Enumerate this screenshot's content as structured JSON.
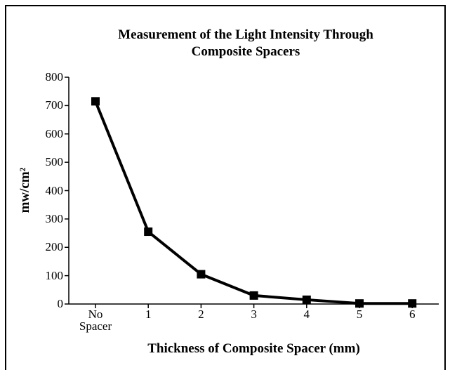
{
  "chart_data": {
    "type": "line",
    "title": "Measurement of the Light Intensity Through Composite Spacers",
    "x_label": "Thickness of Composite Spacer (mm)",
    "y_label": "mw/cm²",
    "categories": [
      "No Spacer",
      "1",
      "2",
      "3",
      "4",
      "5",
      "6"
    ],
    "values": [
      715,
      255,
      105,
      30,
      15,
      2,
      2
    ],
    "color": "#000000",
    "ylim": [
      0,
      800
    ],
    "yticks": [
      0,
      100,
      200,
      300,
      400,
      500,
      600,
      700,
      800
    ],
    "grid": false
  }
}
